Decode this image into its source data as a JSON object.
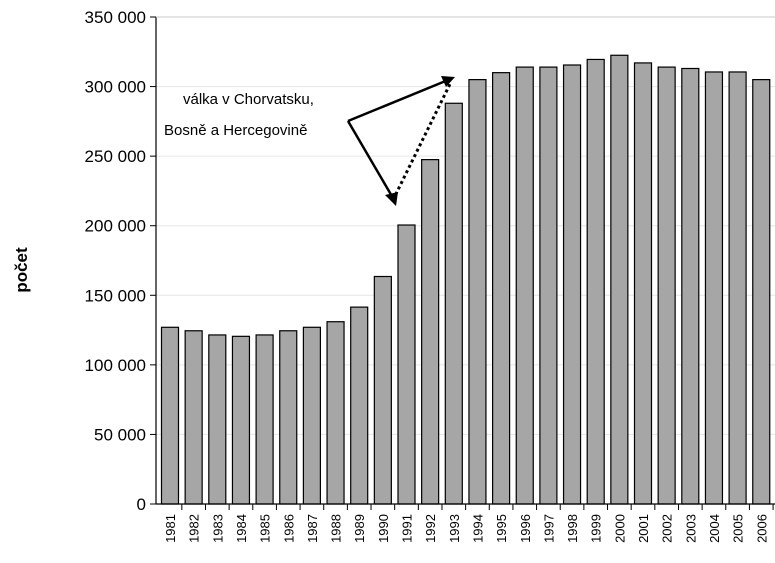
{
  "chart_data": {
    "type": "bar",
    "title": "",
    "xlabel": "",
    "ylabel": "počet",
    "ylim": [
      0,
      350000
    ],
    "yticks": [
      0,
      50000,
      100000,
      150000,
      200000,
      250000,
      300000,
      350000
    ],
    "ytick_labels": [
      "0",
      "50 000",
      "100 000",
      "150 000",
      "200 000",
      "250 000",
      "300 000",
      "350 000"
    ],
    "grid": true,
    "legend": "none",
    "bar_color": "#a6a6a6",
    "categories": [
      "1981",
      "1982",
      "1983",
      "1984",
      "1985",
      "1986",
      "1987",
      "1988",
      "1989",
      "1990",
      "1991",
      "1992",
      "1993",
      "1994",
      "1995",
      "1996",
      "1997",
      "1998",
      "1999",
      "2000",
      "2001",
      "2002",
      "2003",
      "2004",
      "2005",
      "2006"
    ],
    "values": [
      127000,
      124500,
      121500,
      120500,
      121500,
      124500,
      127000,
      131000,
      141500,
      163500,
      200500,
      247500,
      288000,
      305000,
      310000,
      314000,
      314000,
      315500,
      319500,
      322500,
      317000,
      314000,
      313000,
      310500,
      310500,
      305000
    ],
    "annotation": {
      "lines": [
        "válka v Chorvatsku,",
        "Bosně a Hercegovině"
      ]
    }
  }
}
